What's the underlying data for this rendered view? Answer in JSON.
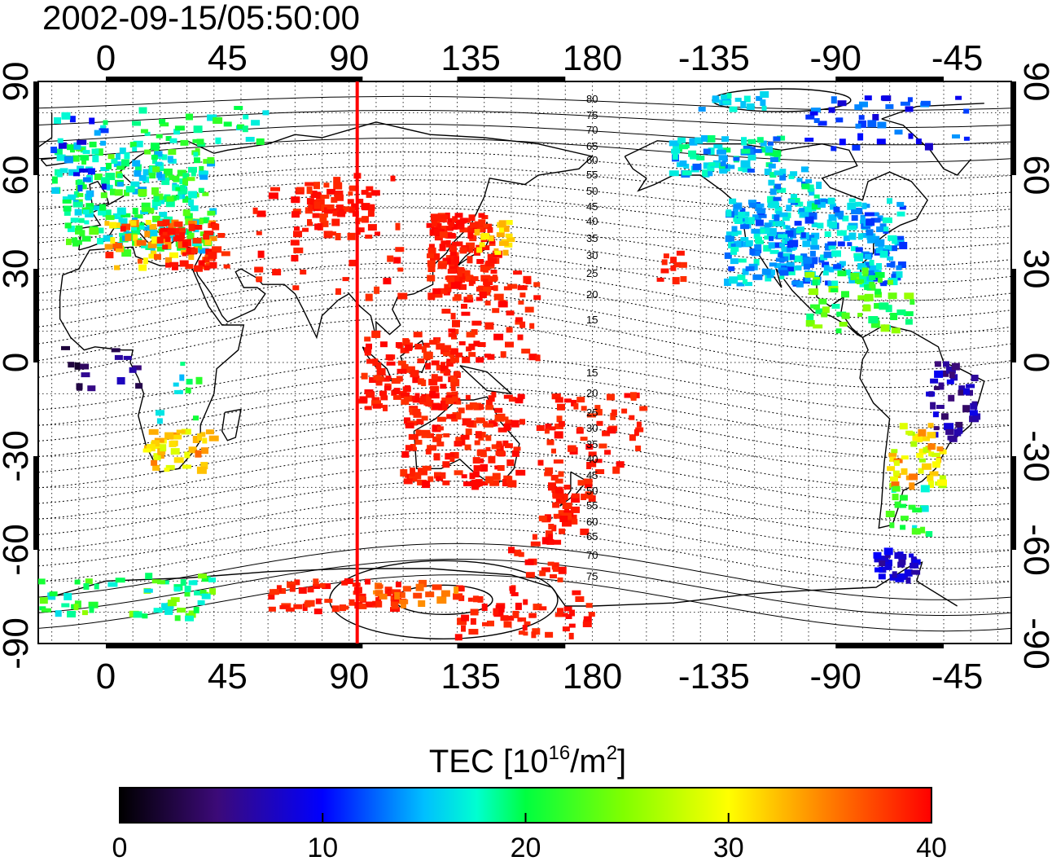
{
  "timestamp": "2002-09-15/05:50:00",
  "map": {
    "lon_ticks": [
      "0",
      "45",
      "90",
      "135",
      "180",
      "-135",
      "-90",
      "-45"
    ],
    "lat_ticks": [
      "90",
      "60",
      "30",
      "0",
      "-30",
      "-60",
      "-90"
    ],
    "lon_range": [
      -25,
      335
    ],
    "lat_range": [
      -90,
      90
    ],
    "grid": "dotted, every 10 degrees",
    "terminator_longitude": 93,
    "terminator_color": "#ff0000",
    "contour_labels": [
      "80",
      "75",
      "70",
      "65",
      "60",
      "55",
      "50",
      "45",
      "40",
      "35",
      "30",
      "25",
      "20",
      "15",
      "15",
      "20",
      "25",
      "30",
      "35",
      "40",
      "45",
      "50",
      "55",
      "60",
      "65",
      "70",
      "75"
    ]
  },
  "colorbar": {
    "title_prefix": "TEC  [10",
    "title_exp": "16",
    "title_mid": "/m",
    "title_exp2": "2",
    "title_suffix": "]",
    "ticks": [
      "0",
      "10",
      "20",
      "30",
      "40"
    ],
    "range": [
      0,
      40
    ],
    "colors": [
      "#000000",
      "#4b0082",
      "#0000ff",
      "#00ffff",
      "#00ff00",
      "#ffff00",
      "#ff8000",
      "#ff0000"
    ]
  }
}
